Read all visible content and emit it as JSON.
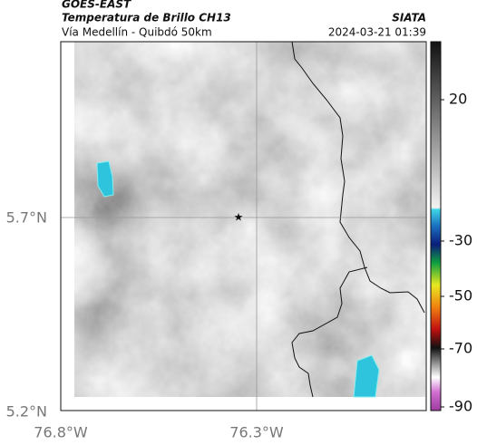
{
  "header": {
    "satellite": "GOES-EAST",
    "product": "Temperatura de Brillo CH13",
    "route": "Vía Medellín - Quibdó 50km",
    "source": "SIATA",
    "datetime": "2024-03-21 01:39"
  },
  "map": {
    "lat_labels": [
      "5.7°N",
      "5.2°N"
    ],
    "lon_labels": [
      "76.8°W",
      "76.3°W"
    ]
  },
  "colorbar": {
    "labels": [
      "20",
      "-30",
      "-50",
      "-70",
      "-90"
    ]
  }
}
